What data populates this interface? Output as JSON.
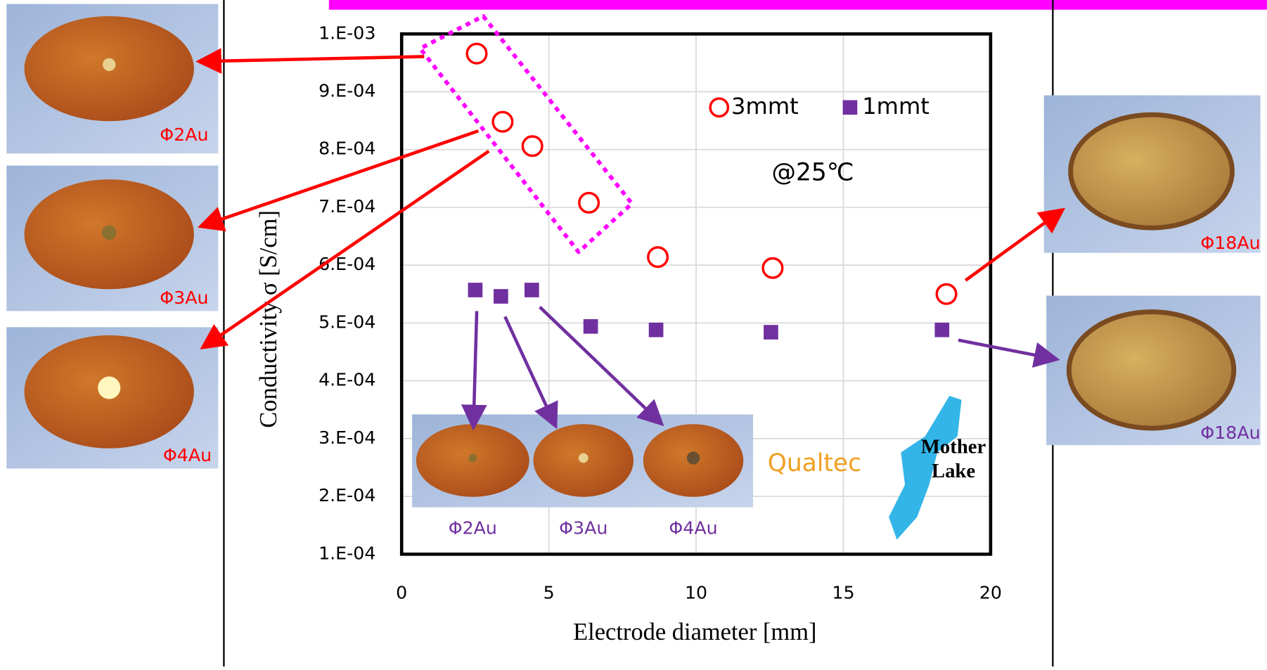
{
  "chart_data": {
    "type": "scatter",
    "x_label": "Electrode diameter [mm]",
    "y_label": "Conductivity σ [S/cm]",
    "annotation": "@25℃",
    "xlim": [
      0,
      20
    ],
    "xticks": [
      0,
      5,
      10,
      15,
      20
    ],
    "ylim": [
      0.0001,
      0.001
    ],
    "yticks": [
      {
        "value": 0.0001,
        "label": "1.E-04"
      },
      {
        "value": 0.0002,
        "label": "2.E-04"
      },
      {
        "value": 0.0003,
        "label": "3.E-04"
      },
      {
        "value": 0.0004,
        "label": "4.E-04"
      },
      {
        "value": 0.0005,
        "label": "5.E-04"
      },
      {
        "value": 0.0006,
        "label": "6.E-04"
      },
      {
        "value": 0.0007,
        "label": "7.E-04"
      },
      {
        "value": 0.0008,
        "label": "8.E-04"
      },
      {
        "value": 0.0009,
        "label": "9.E-04"
      },
      {
        "value": 0.001,
        "label": "1.E-03"
      }
    ],
    "grid": true,
    "series": [
      {
        "name": "3mmt",
        "color": "#ff0000",
        "marker": "circle",
        "x": [
          2.55,
          3.43,
          4.44,
          6.36,
          8.7,
          12.6,
          18.5
        ],
        "values": [
          0.000966,
          0.000848,
          0.000806,
          0.000708,
          0.000614,
          0.000595,
          0.00055
        ]
      },
      {
        "name": "1mmt",
        "color": "#7030a0",
        "marker": "square",
        "x": [
          2.5,
          3.37,
          4.42,
          6.42,
          8.64,
          12.54,
          18.35
        ],
        "values": [
          0.000557,
          0.000546,
          0.000557,
          0.000494,
          0.000488,
          0.000484,
          0.000488
        ]
      }
    ]
  },
  "photos": {
    "left": [
      "Φ2Au",
      "Φ3Au",
      "Φ4Au"
    ],
    "right": [
      "Φ18Au",
      "Φ18Au"
    ],
    "inset": [
      "Φ2Au",
      "Φ3Au",
      "Φ4Au"
    ]
  },
  "logos": {
    "qualtec": "Qualtec",
    "lake": [
      "Mother",
      "Lake"
    ]
  }
}
